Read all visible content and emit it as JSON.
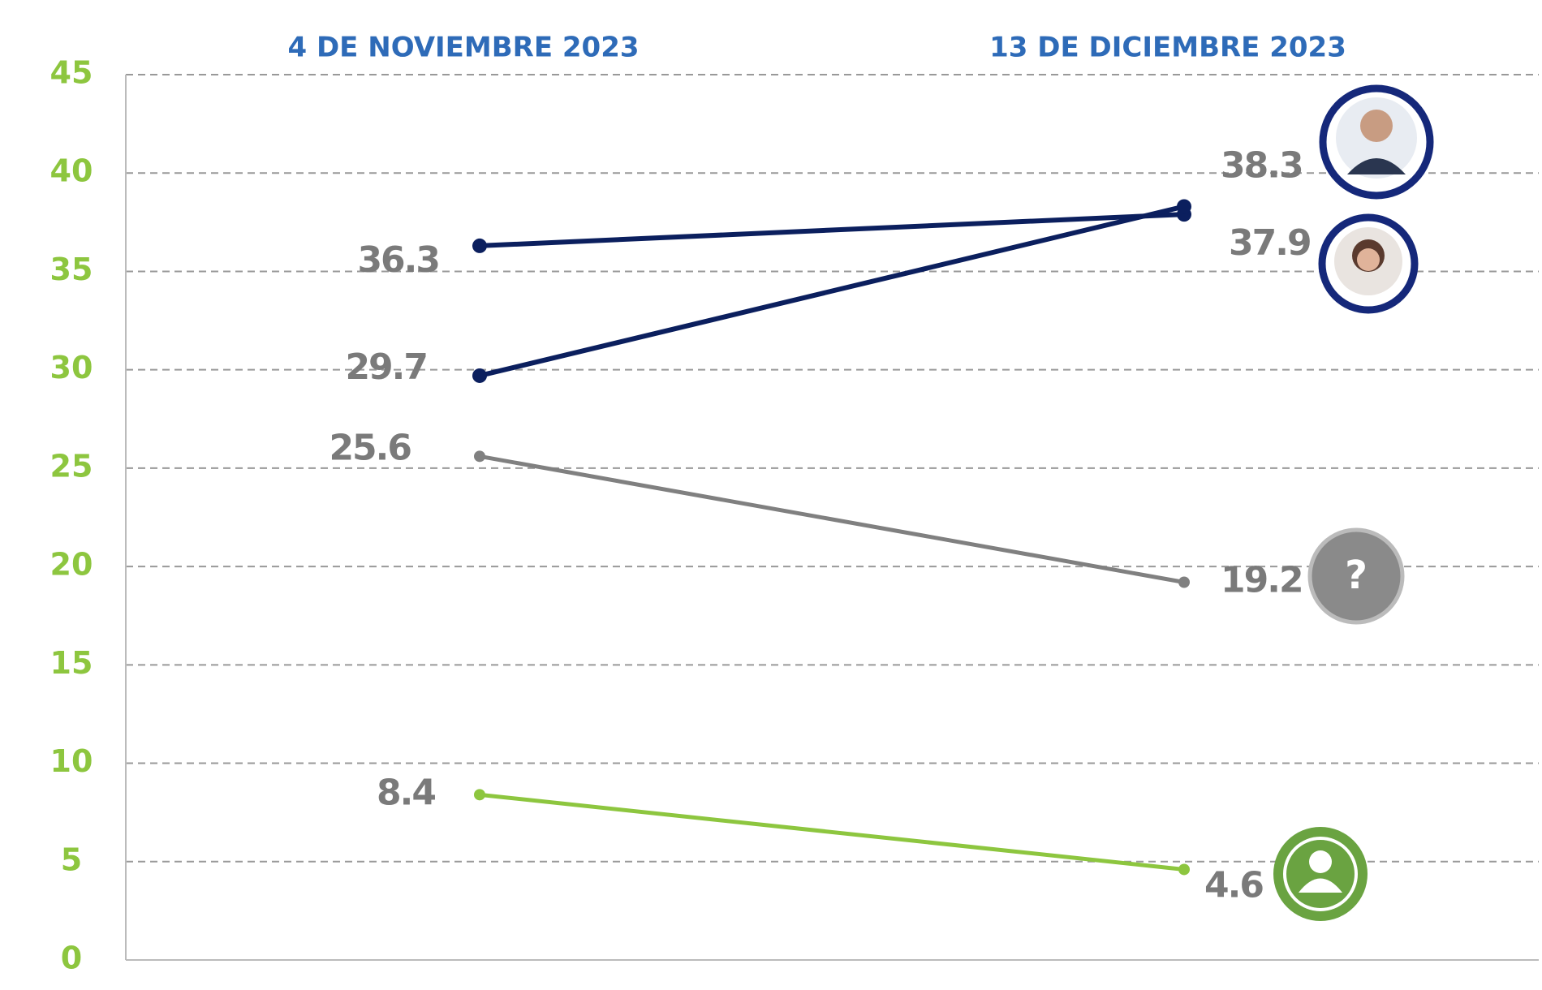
{
  "chart_data": {
    "type": "line",
    "categories": [
      "4 DE NOVIEMBRE 2023",
      "13 DE DICIEMBRE 2023"
    ],
    "series": [
      {
        "color": "#0b1f5e",
        "values": [
          36.3,
          37.9
        ]
      },
      {
        "color": "#0b1f5e",
        "values": [
          29.7,
          38.3
        ]
      },
      {
        "color": "#808080",
        "values": [
          25.6,
          19.2
        ]
      },
      {
        "color": "#8dc63f",
        "values": [
          8.4,
          4.6
        ]
      }
    ],
    "ylim": [
      0,
      45
    ],
    "yticks": [
      0,
      5,
      10,
      15,
      20,
      25,
      30,
      35,
      40,
      45
    ],
    "grid": true
  }
}
